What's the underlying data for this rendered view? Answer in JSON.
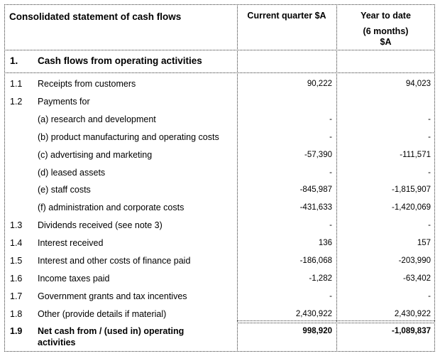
{
  "header": {
    "title": "Consolidated statement of cash flows",
    "col_current": "Current quarter $A",
    "col_ytd_line1": "Year to date",
    "col_ytd_line2": "(6 months)",
    "col_ytd_line3": "$A"
  },
  "section": {
    "num": "1.",
    "label": "Cash flows from operating activities"
  },
  "rows": [
    {
      "num": "1.1",
      "label": "Receipts from customers",
      "current": "90,222",
      "ytd": "94,023"
    },
    {
      "num": "1.2",
      "label": "Payments for",
      "current": "",
      "ytd": ""
    },
    {
      "num": "",
      "label": "(a) research and development",
      "current": "-",
      "ytd": "-"
    },
    {
      "num": "",
      "label": "(b) product manufacturing and operating costs",
      "current": "-",
      "ytd": "-"
    },
    {
      "num": "",
      "label": "(c) advertising and marketing",
      "current": "-57,390",
      "ytd": "-111,571"
    },
    {
      "num": "",
      "label": "(d) leased assets",
      "current": "-",
      "ytd": "-"
    },
    {
      "num": "",
      "label": "(e) staff costs",
      "current": "-845,987",
      "ytd": "-1,815,907"
    },
    {
      "num": "",
      "label": "(f)    administration and corporate costs",
      "current": "-431,633",
      "ytd": "-1,420,069"
    },
    {
      "num": "1.3",
      "label": "Dividends received (see note 3)",
      "current": "-",
      "ytd": "-"
    },
    {
      "num": "1.4",
      "label": "Interest received",
      "current": "136",
      "ytd": "157"
    },
    {
      "num": "1.5",
      "label": "Interest and other costs of finance paid",
      "current": "-186,068",
      "ytd": "-203,990"
    },
    {
      "num": "1.6",
      "label": "Income taxes paid",
      "current": "-1,282",
      "ytd": "-63,402"
    },
    {
      "num": "1.7",
      "label": "Government grants and tax incentives",
      "current": "-",
      "ytd": "-"
    },
    {
      "num": "1.8",
      "label": "Other (provide details if material)",
      "current": "2,430,922",
      "ytd": "2,430,922"
    }
  ],
  "total": {
    "num": "1.9",
    "label_line1": "Net cash from / (used in) operating",
    "label_line2": "activities",
    "current": "998,920",
    "ytd": "-1,089,837"
  }
}
